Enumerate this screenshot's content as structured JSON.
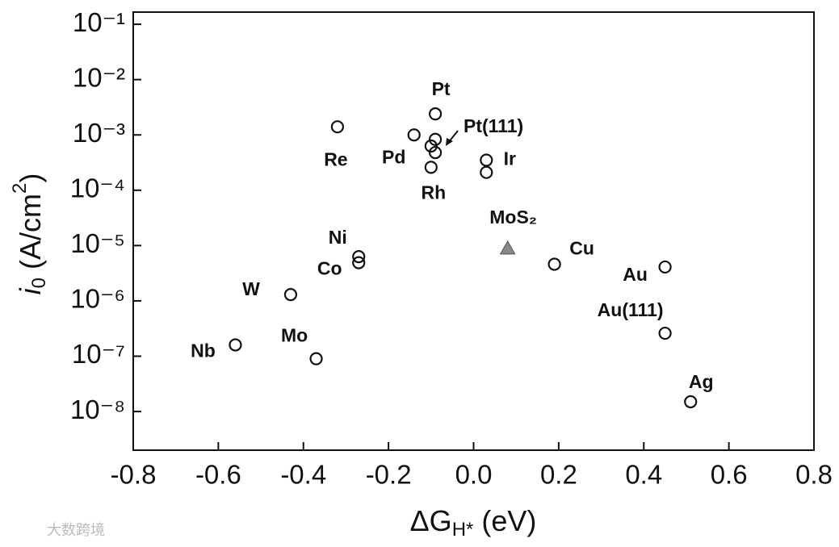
{
  "chart_data": {
    "type": "scatter",
    "xlabel_parts": [
      "ΔG",
      "H*",
      " (eV)"
    ],
    "ylabel_parts": [
      "i",
      "0",
      " (A/cm",
      "2",
      ")"
    ],
    "xlim": [
      -0.8,
      0.8
    ],
    "xticks": [
      -0.8,
      -0.6,
      -0.4,
      -0.2,
      {
        "value": 0,
        "label": "0.0"
      },
      0.2,
      0.4,
      0.6,
      0.8
    ],
    "ylim": [
      2e-09,
      0.166
    ],
    "ylog": true,
    "yticks": [
      {
        "value": 1e-08,
        "label": "10⁻⁸"
      },
      {
        "value": 1e-07,
        "label": "10⁻⁷"
      },
      {
        "value": 1e-06,
        "label": "10⁻⁶"
      },
      {
        "value": 1e-05,
        "label": "10⁻⁵"
      },
      {
        "value": 0.0001,
        "label": "10⁻⁴"
      },
      {
        "value": 0.001,
        "label": "10⁻³"
      },
      {
        "value": 0.01,
        "label": "10⁻²"
      },
      {
        "value": 0.1,
        "label": "10⁻¹"
      }
    ],
    "points": {
      "x": [
        -0.09,
        -0.14,
        -0.09,
        -0.1,
        -0.09,
        -0.1,
        0.03,
        0.03,
        -0.32,
        -0.27,
        -0.27,
        -0.43,
        -0.56,
        -0.37,
        0.19,
        0.45,
        0.45,
        0.51
      ],
      "y": [
        0.0024,
        0.001,
        0.00083,
        0.00063,
        0.00048,
        0.00026,
        0.00035,
        0.00021,
        0.0014,
        6.3e-06,
        4.9e-06,
        1.3e-06,
        1.6e-07,
        9e-08,
        4.6e-06,
        4.1e-06,
        2.6e-07,
        1.5e-08
      ],
      "labels": [
        "Pt",
        "Pd",
        null,
        null,
        "Pt(111)",
        "Rh",
        "Ir",
        null,
        "Re",
        "Ni",
        "Co",
        "W",
        "Nb",
        "Mo",
        "Cu",
        "Au",
        "Au(111)",
        "Ag"
      ],
      "color": "#111111"
    },
    "triangle": {
      "x": 0.08,
      "y": 8.9e-06,
      "label": "MoS₂",
      "color": "#888888"
    },
    "watermark": "大数跨境"
  }
}
